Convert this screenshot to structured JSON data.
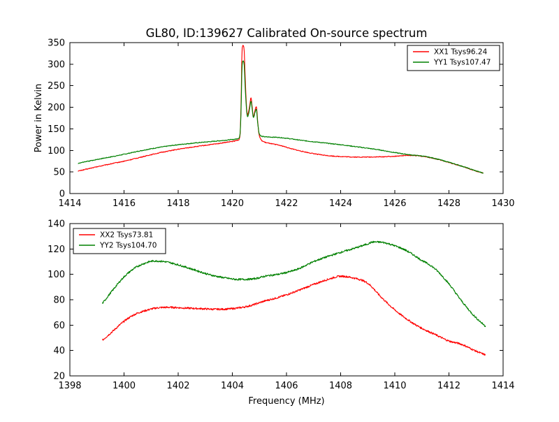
{
  "figure": {
    "background_color": "#ffffff",
    "frame_color": "#000000"
  },
  "chart_data": [
    {
      "type": "line",
      "title": "GL80, ID:139627 Calibrated On-source spectrum",
      "xlabel": "",
      "ylabel": "Power in Kelvin",
      "xlim": [
        1414,
        1430
      ],
      "ylim": [
        0,
        350
      ],
      "xticks": [
        1414,
        1416,
        1418,
        1420,
        1422,
        1424,
        1426,
        1428,
        1430
      ],
      "yticks": [
        0,
        50,
        100,
        150,
        200,
        250,
        300,
        350
      ],
      "grid": false,
      "legend_position": "upper-right",
      "noise_amplitude": 0.9,
      "series": [
        {
          "name": "XX1 Tsys96.24",
          "color": "#ff0000",
          "points": [
            [
              1414.3,
              52
            ],
            [
              1415.0,
              62
            ],
            [
              1415.6,
              70
            ],
            [
              1416.0,
              75
            ],
            [
              1416.6,
              84
            ],
            [
              1417.2,
              93
            ],
            [
              1417.9,
              101.5
            ],
            [
              1418.5,
              107.5
            ],
            [
              1419.2,
              113.5
            ],
            [
              1419.8,
              119
            ],
            [
              1420.1,
              122
            ],
            [
              1420.22,
              124.5
            ],
            [
              1420.28,
              132
            ],
            [
              1420.32,
              200
            ],
            [
              1420.36,
              335
            ],
            [
              1420.4,
              343
            ],
            [
              1420.44,
              328
            ],
            [
              1420.48,
              260
            ],
            [
              1420.52,
              205
            ],
            [
              1420.56,
              183
            ],
            [
              1420.62,
              196
            ],
            [
              1420.69,
              222
            ],
            [
              1420.74,
              196
            ],
            [
              1420.78,
              179
            ],
            [
              1420.84,
              194
            ],
            [
              1420.89,
              202
            ],
            [
              1420.93,
              172
            ],
            [
              1420.98,
              140
            ],
            [
              1421.05,
              126
            ],
            [
              1421.15,
              120.5
            ],
            [
              1421.4,
              116
            ],
            [
              1421.74,
              112
            ],
            [
              1422.2,
              103.5
            ],
            [
              1422.6,
              97.5
            ],
            [
              1423.1,
              91.5
            ],
            [
              1423.6,
              87.5
            ],
            [
              1424.1,
              85.5
            ],
            [
              1424.7,
              84.5
            ],
            [
              1425.4,
              85
            ],
            [
              1426.0,
              86.5
            ],
            [
              1426.6,
              88.5
            ],
            [
              1427.0,
              86.5
            ],
            [
              1427.4,
              82
            ],
            [
              1428.0,
              72
            ],
            [
              1428.6,
              60.5
            ],
            [
              1429.0,
              52
            ],
            [
              1429.27,
              47
            ]
          ]
        },
        {
          "name": "YY1 Tsys107.47",
          "color": "#008000",
          "points": [
            [
              1414.3,
              70
            ],
            [
              1415.0,
              79
            ],
            [
              1415.6,
              86
            ],
            [
              1416.0,
              91
            ],
            [
              1416.6,
              99
            ],
            [
              1417.2,
              106
            ],
            [
              1417.9,
              112.5
            ],
            [
              1418.5,
              116.5
            ],
            [
              1419.2,
              120.5
            ],
            [
              1419.8,
              124
            ],
            [
              1420.1,
              126
            ],
            [
              1420.22,
              128
            ],
            [
              1420.28,
              136
            ],
            [
              1420.32,
              185
            ],
            [
              1420.36,
              298
            ],
            [
              1420.4,
              308
            ],
            [
              1420.44,
              296
            ],
            [
              1420.48,
              240
            ],
            [
              1420.52,
              198
            ],
            [
              1420.56,
              178
            ],
            [
              1420.62,
              190
            ],
            [
              1420.69,
              214
            ],
            [
              1420.74,
              192
            ],
            [
              1420.78,
              176
            ],
            [
              1420.84,
              189
            ],
            [
              1420.89,
              196
            ],
            [
              1420.93,
              168
            ],
            [
              1420.98,
              143
            ],
            [
              1421.05,
              134
            ],
            [
              1421.15,
              132
            ],
            [
              1421.4,
              131
            ],
            [
              1421.74,
              130
            ],
            [
              1422.2,
              126.5
            ],
            [
              1422.6,
              123
            ],
            [
              1423.1,
              119.5
            ],
            [
              1423.6,
              116
            ],
            [
              1424.1,
              112.5
            ],
            [
              1424.7,
              107.5
            ],
            [
              1425.4,
              101.5
            ],
            [
              1426.0,
              95
            ],
            [
              1426.6,
              89.5
            ],
            [
              1427.0,
              87
            ],
            [
              1427.4,
              82.5
            ],
            [
              1428.0,
              72.5
            ],
            [
              1428.6,
              61
            ],
            [
              1429.0,
              52.5
            ],
            [
              1429.27,
              47.5
            ]
          ]
        }
      ]
    },
    {
      "type": "line",
      "title": "",
      "xlabel": "Frequency (MHz)",
      "ylabel": "",
      "xlim": [
        1398,
        1414
      ],
      "ylim": [
        20,
        140
      ],
      "xticks": [
        1398,
        1400,
        1402,
        1404,
        1406,
        1408,
        1410,
        1412,
        1414
      ],
      "yticks": [
        20,
        40,
        60,
        80,
        100,
        120,
        140
      ],
      "grid": false,
      "legend_position": "upper-left",
      "noise_amplitude": 0.7,
      "series": [
        {
          "name": "XX2 Tsys73.81",
          "color": "#ff0000",
          "points": [
            [
              1399.2,
              48
            ],
            [
              1399.6,
              55.5
            ],
            [
              1400.0,
              63
            ],
            [
              1400.4,
              68.5
            ],
            [
              1400.8,
              71.5
            ],
            [
              1401.2,
              73.5
            ],
            [
              1401.7,
              74
            ],
            [
              1402.2,
              73.5
            ],
            [
              1402.8,
              73
            ],
            [
              1403.4,
              72.5
            ],
            [
              1404.0,
              73
            ],
            [
              1404.6,
              75
            ],
            [
              1405.2,
              79
            ],
            [
              1405.8,
              82.5
            ],
            [
              1406.4,
              87
            ],
            [
              1407.0,
              92
            ],
            [
              1407.6,
              96.5
            ],
            [
              1408.0,
              98.5
            ],
            [
              1408.4,
              97.5
            ],
            [
              1409.0,
              93
            ],
            [
              1409.5,
              82
            ],
            [
              1410.0,
              72
            ],
            [
              1410.6,
              62.5
            ],
            [
              1411.0,
              57.5
            ],
            [
              1411.45,
              53
            ],
            [
              1412.0,
              47.5
            ],
            [
              1412.45,
              45
            ],
            [
              1413.0,
              39.5
            ],
            [
              1413.35,
              36.5
            ]
          ]
        },
        {
          "name": "YY2 Tsys104.70",
          "color": "#008000",
          "points": [
            [
              1399.2,
              77
            ],
            [
              1399.6,
              88
            ],
            [
              1400.0,
              98
            ],
            [
              1400.4,
              105
            ],
            [
              1400.8,
              109
            ],
            [
              1401.1,
              110.5
            ],
            [
              1401.5,
              110
            ],
            [
              1402.0,
              107.5
            ],
            [
              1402.6,
              103.5
            ],
            [
              1403.2,
              99.5
            ],
            [
              1403.8,
              97
            ],
            [
              1404.2,
              96
            ],
            [
              1404.8,
              96.5
            ],
            [
              1405.2,
              98.5
            ],
            [
              1405.8,
              100.5
            ],
            [
              1406.4,
              104
            ],
            [
              1407.0,
              110
            ],
            [
              1407.8,
              116
            ],
            [
              1408.5,
              120.5
            ],
            [
              1409.0,
              124
            ],
            [
              1409.2,
              125.5
            ],
            [
              1409.6,
              125
            ],
            [
              1410.0,
              122.5
            ],
            [
              1410.4,
              119
            ],
            [
              1411.0,
              111
            ],
            [
              1411.45,
              105
            ],
            [
              1412.0,
              92.5
            ],
            [
              1412.45,
              79.5
            ],
            [
              1412.9,
              68
            ],
            [
              1413.35,
              59
            ]
          ]
        }
      ]
    }
  ]
}
